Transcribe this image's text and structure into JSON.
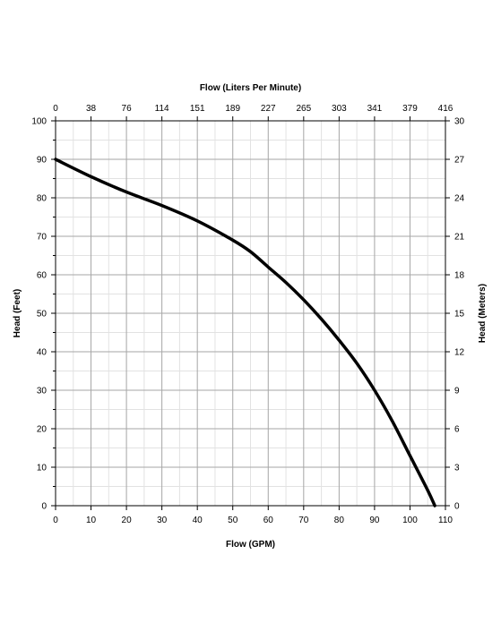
{
  "chart_data": {
    "type": "line",
    "title": "",
    "xlabel": "Flow (GPM)",
    "ylabel": "Head (Feet)",
    "x2label": "Flow (Liters Per Minute)",
    "y2label": "Head (Meters)",
    "xlim": [
      0,
      110
    ],
    "ylim": [
      0,
      100
    ],
    "x_ticks": [
      "0",
      "10",
      "20",
      "30",
      "40",
      "50",
      "60",
      "70",
      "80",
      "90",
      "100",
      "110"
    ],
    "y_ticks": [
      "0",
      "10",
      "20",
      "30",
      "40",
      "50",
      "60",
      "70",
      "80",
      "90",
      "100"
    ],
    "x2_ticks": [
      "0",
      "38",
      "76",
      "114",
      "151",
      "189",
      "227",
      "265",
      "303",
      "341",
      "379",
      "416"
    ],
    "y2_ticks": [
      "0",
      "3",
      "6",
      "9",
      "12",
      "15",
      "18",
      "21",
      "24",
      "27",
      "30"
    ],
    "grid": true,
    "line_color": "#000000",
    "series": [
      {
        "x": [
          0,
          10,
          20,
          30,
          40,
          50,
          55,
          60,
          65,
          70,
          75,
          80,
          85,
          90,
          95,
          100,
          105,
          107
        ],
        "y": [
          90,
          85.5,
          81.5,
          78,
          74,
          69,
          66,
          62,
          58,
          53.5,
          48.5,
          43,
          37,
          30,
          22,
          13,
          4,
          0
        ]
      }
    ]
  }
}
